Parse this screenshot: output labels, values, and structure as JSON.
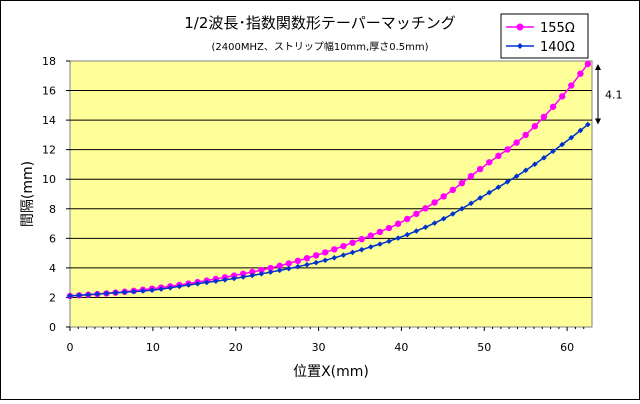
{
  "chart_data": {
    "type": "line",
    "title": "1/2波長･指数関数形テーパーマッチング",
    "subtitle": "(2400MHZ、ストリップ幅10mm,厚さ0.5mm)",
    "xlabel": "位置X(mm)",
    "ylabel": "間隔(mm)",
    "xlim": [
      0,
      63
    ],
    "ylim": [
      0,
      18
    ],
    "xticks": [
      "0",
      "10",
      "20",
      "30",
      "40",
      "50",
      "60"
    ],
    "yticks": [
      "0",
      "2",
      "4",
      "6",
      "8",
      "10",
      "12",
      "14",
      "16",
      "18"
    ],
    "grid": "horizontal",
    "legend_position": "top-right",
    "annotation": "4.1",
    "series": [
      {
        "name": "155Ω",
        "color": "#ff00ff",
        "marker": "circle",
        "x": [
          0,
          5,
          10,
          15,
          20,
          25,
          30,
          35,
          40,
          45,
          50,
          55,
          60,
          62.5
        ],
        "y": [
          2.1,
          2.3,
          2.6,
          3.0,
          3.5,
          4.1,
          4.9,
          5.9,
          7.1,
          8.8,
          10.9,
          13.0,
          16.0,
          17.8
        ]
      },
      {
        "name": "140Ω",
        "color": "#0033cc",
        "marker": "diamond",
        "x": [
          0,
          5,
          10,
          15,
          20,
          25,
          30,
          35,
          40,
          45,
          50,
          55,
          60,
          62.5
        ],
        "y": [
          2.1,
          2.3,
          2.5,
          2.9,
          3.3,
          3.8,
          4.4,
          5.2,
          6.1,
          7.3,
          8.9,
          10.6,
          12.6,
          13.7
        ]
      }
    ]
  }
}
